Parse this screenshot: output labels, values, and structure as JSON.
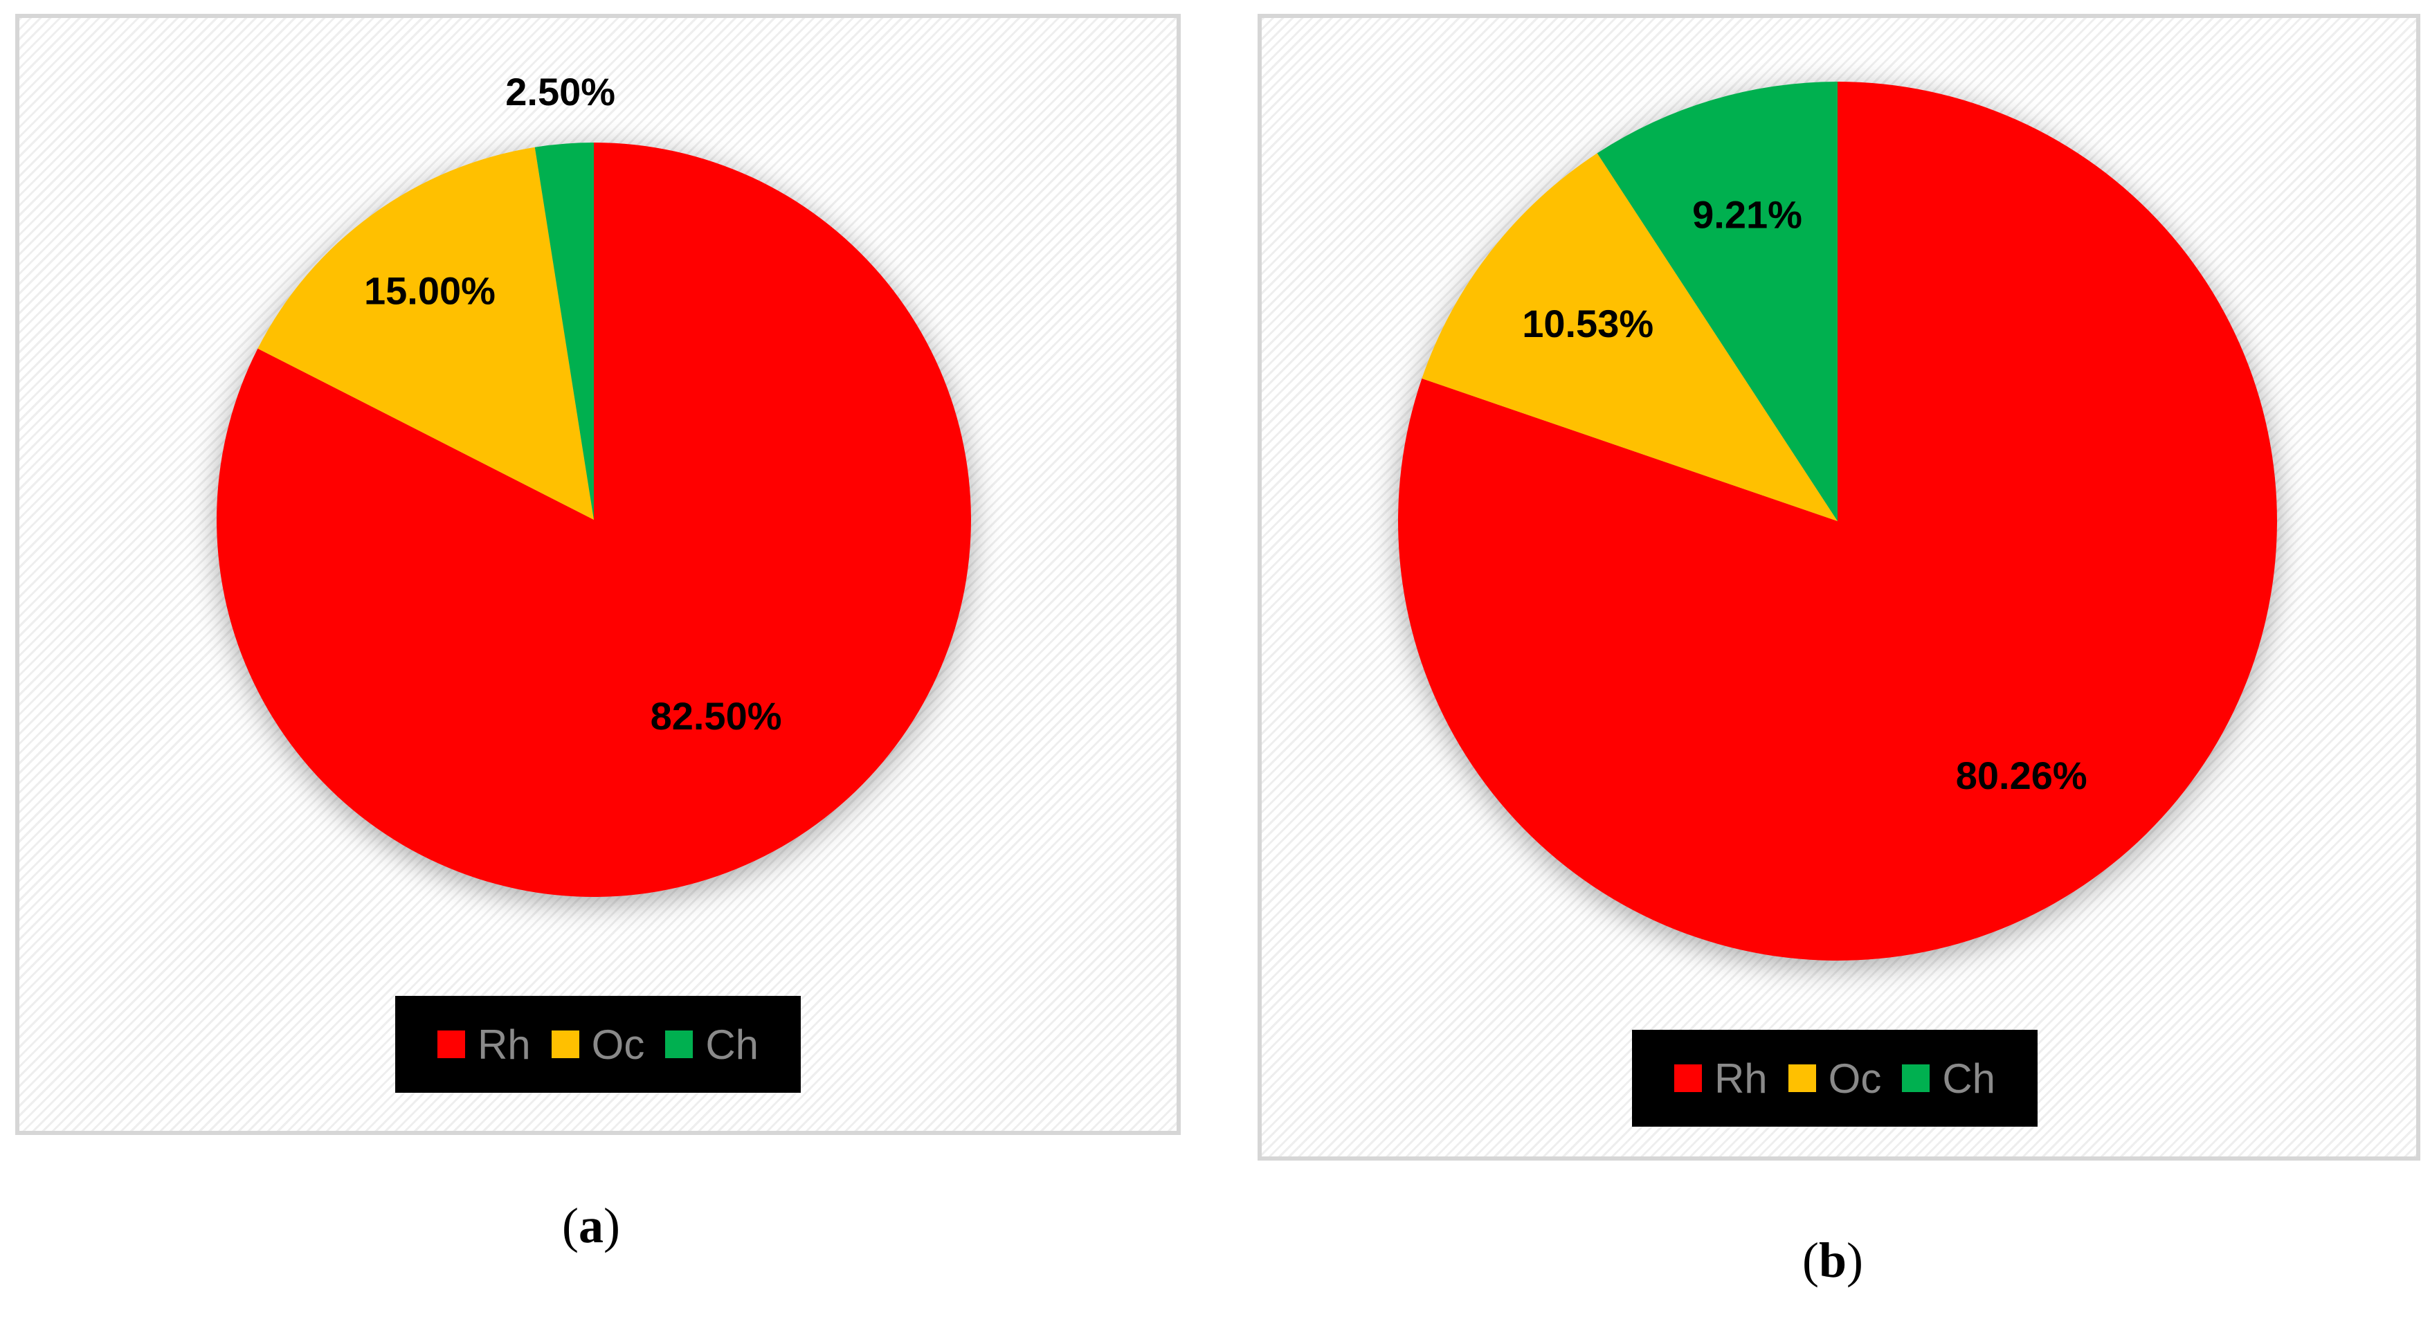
{
  "chart_data": [
    {
      "type": "pie",
      "title": "",
      "categories": [
        "Rh",
        "Oc",
        "Ch"
      ],
      "values": [
        82.5,
        15.0,
        2.5
      ],
      "labels": [
        "82.50%",
        "15.00%",
        "2.50%"
      ],
      "colors": [
        "#ff0000",
        "#ffc000",
        "#00b050"
      ],
      "legend": {
        "position": "bottom",
        "entries": [
          "Rh",
          "Oc",
          "Ch"
        ]
      },
      "caption": {
        "open": "(",
        "letter": "a",
        "close": ")"
      }
    },
    {
      "type": "pie",
      "title": "",
      "categories": [
        "Rh",
        "Oc",
        "Ch"
      ],
      "values": [
        80.26,
        10.53,
        9.21
      ],
      "labels": [
        "80.26%",
        "10.53%",
        "9.21%"
      ],
      "colors": [
        "#ff0000",
        "#ffc000",
        "#00b050"
      ],
      "legend": {
        "position": "bottom",
        "entries": [
          "Rh",
          "Oc",
          "Ch"
        ]
      },
      "caption": {
        "open": "(",
        "letter": "b",
        "close": ")"
      }
    }
  ]
}
